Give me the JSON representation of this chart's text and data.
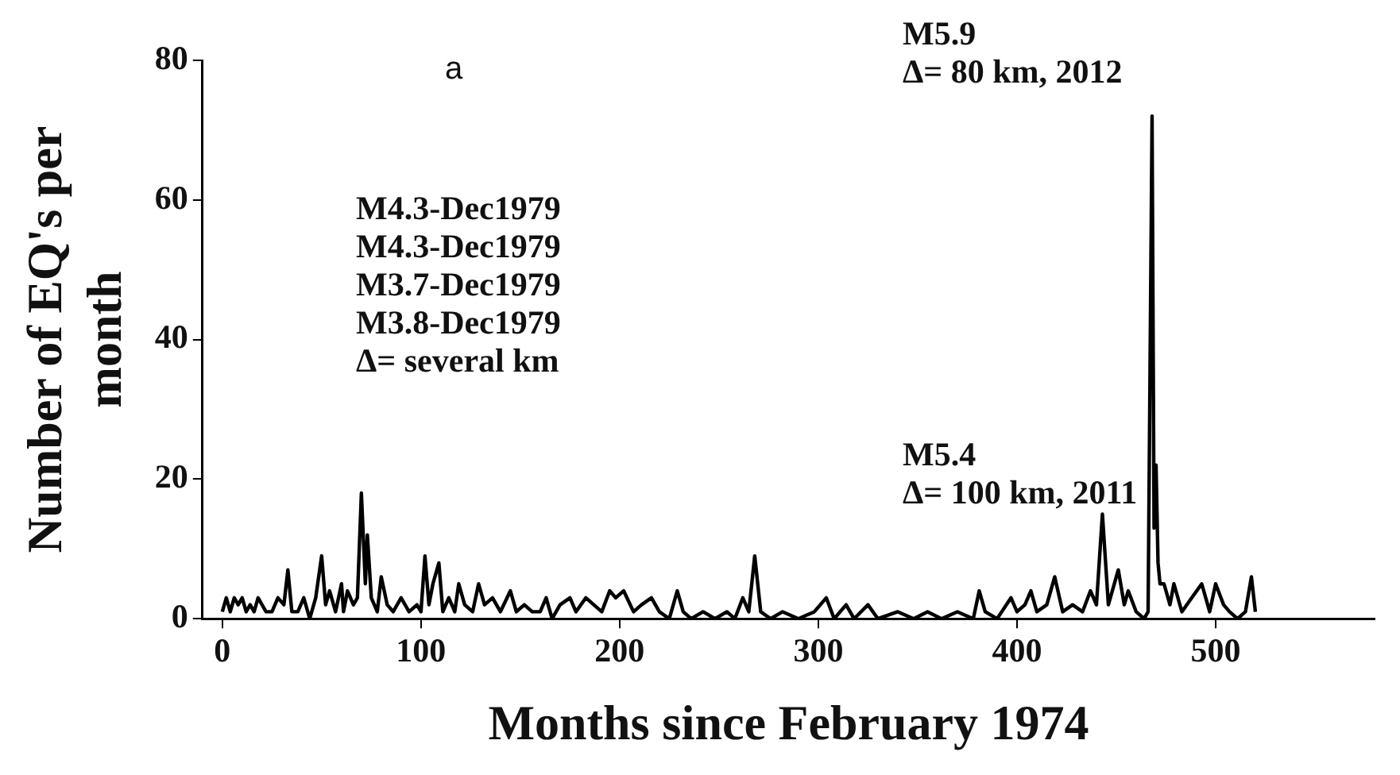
{
  "chart_data": {
    "type": "line",
    "xlabel": "Months since February 1974",
    "ylabel": "Number of EQ's per month",
    "annotations": [
      "a",
      "M5.9\nΔ= 80 km, 2012",
      "M4.3-Dec1979\nM4.3-Dec1979\nM3.7-Dec1979\nM3.8-Dec1979\nΔ= several km",
      "M5.4\nΔ= 100 km, 2011"
    ],
    "x": [
      0,
      2,
      4,
      6,
      8,
      10,
      12,
      14,
      16,
      18,
      20,
      22,
      25,
      28,
      31,
      33,
      35,
      38,
      41,
      44,
      47,
      50,
      52,
      54,
      57,
      60,
      61,
      63,
      66,
      68,
      70,
      72,
      73,
      75,
      78,
      80,
      83,
      86,
      90,
      94,
      98,
      100,
      102,
      104,
      106,
      109,
      111,
      114,
      117,
      119,
      122,
      126,
      129,
      132,
      136,
      140,
      145,
      148,
      152,
      156,
      160,
      163,
      166,
      170,
      175,
      178,
      183,
      187,
      191,
      195,
      198,
      202,
      207,
      211,
      216,
      220,
      225,
      229,
      232,
      236,
      242,
      248,
      254,
      258,
      262,
      265,
      268,
      271,
      276,
      282,
      290,
      298,
      304,
      308,
      314,
      318,
      325,
      330,
      340,
      348,
      355,
      362,
      370,
      378,
      381,
      384,
      390,
      397,
      400,
      404,
      407,
      410,
      415,
      419,
      423,
      428,
      433,
      437,
      440,
      443,
      446,
      451,
      454,
      456,
      460,
      464,
      466,
      468,
      469,
      470,
      471,
      472,
      474,
      477,
      479,
      483,
      488,
      493,
      497,
      500,
      504,
      507,
      511,
      515,
      518,
      520
    ],
    "values": [
      1,
      3,
      1,
      3,
      2,
      3,
      1,
      2,
      1,
      3,
      2,
      1,
      1,
      3,
      2,
      7,
      1,
      1,
      3,
      0,
      3,
      9,
      2,
      4,
      1,
      5,
      1,
      4,
      2,
      3,
      18,
      5,
      12,
      3,
      1,
      6,
      2,
      1,
      3,
      1,
      2,
      1,
      9,
      2,
      5,
      8,
      1,
      3,
      1,
      5,
      2,
      1,
      5,
      2,
      3,
      1,
      4,
      1,
      2,
      1,
      1,
      3,
      0,
      2,
      3,
      1,
      3,
      2,
      1,
      4,
      3,
      4,
      1,
      2,
      3,
      1,
      0,
      4,
      1,
      0,
      1,
      0,
      1,
      0,
      3,
      1,
      9,
      1,
      0,
      1,
      0,
      1,
      3,
      0,
      2,
      0,
      2,
      0,
      1,
      0,
      1,
      0,
      1,
      0,
      4,
      1,
      0,
      3,
      1,
      2,
      4,
      1,
      2,
      6,
      1,
      2,
      1,
      4,
      2,
      15,
      2,
      7,
      2,
      4,
      1,
      0,
      1,
      72,
      13,
      22,
      8,
      5,
      5,
      2,
      5,
      1,
      3,
      5,
      1,
      5,
      2,
      1,
      0,
      1,
      6,
      1
    ],
    "color": "#000000",
    "xlim": [
      -10,
      580
    ],
    "xticks": [
      0,
      100,
      200,
      300,
      400,
      500
    ],
    "ylim": [
      0,
      80
    ],
    "yticks": [
      0,
      20,
      40,
      60,
      80
    ]
  }
}
